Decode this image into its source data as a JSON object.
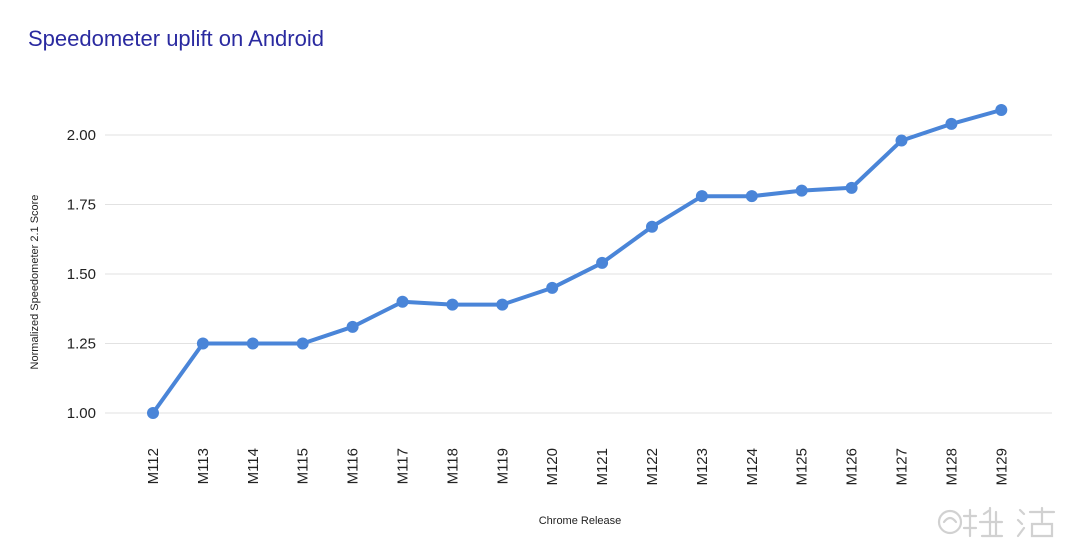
{
  "chart_data": {
    "type": "line",
    "title": "Speedometer uplift on Android",
    "xlabel": "Chrome Release",
    "ylabel": "Normalized Speedometer 2.1 Score",
    "categories": [
      "M112",
      "M113",
      "M114",
      "M115",
      "M116",
      "M117",
      "M118",
      "M119",
      "M120",
      "M121",
      "M122",
      "M123",
      "M124",
      "M125",
      "M126",
      "M127",
      "M128",
      "M129"
    ],
    "series": [
      {
        "values": [
          1.0,
          1.25,
          1.25,
          1.25,
          1.31,
          1.4,
          1.39,
          1.39,
          1.45,
          1.54,
          1.67,
          1.78,
          1.78,
          1.8,
          1.81,
          1.98,
          2.04,
          2.09
        ]
      }
    ],
    "yticks": [
      "1.00",
      "1.25",
      "1.50",
      "1.75",
      "2.00"
    ],
    "ytick_values": [
      1.0,
      1.25,
      1.5,
      1.75,
      2.0
    ],
    "ylim": [
      1.0,
      2.0
    ],
    "grid": true,
    "legend": "none",
    "line_color": "#4a85d8"
  }
}
